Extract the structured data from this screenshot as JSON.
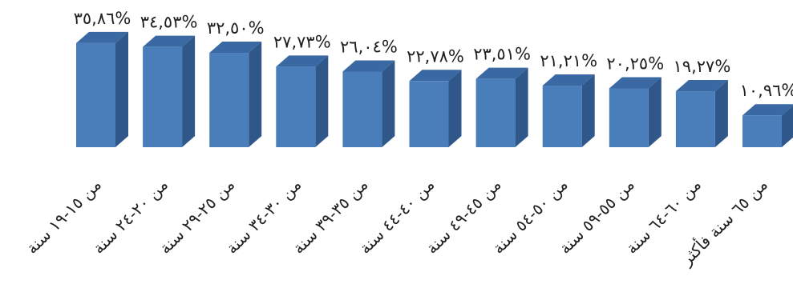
{
  "chart_data": {
    "type": "bar",
    "style": "3d-column",
    "title": "",
    "xlabel": "",
    "ylabel": "",
    "grid": false,
    "legend": "none",
    "ylim": [
      0,
      36
    ],
    "colors": {
      "front": "#4A7EBB",
      "side": "#2F578A",
      "top": "#3A68A2",
      "text": "#1f1f1f",
      "background": "#ffffff"
    },
    "categories": [
      "من ١٥-١٩ سنة",
      "من ٢٠-٢٤ سنة",
      "من ٢٥-٢٩ سنة",
      "من ٣٠-٣٤ سنة",
      "من ٣٥-٣٩ سنة",
      "من ٤٠-٤٤ سنة",
      "من ٤٥-٤٩ سنة",
      "من ٥٠-٥٤ سنة",
      "من ٥٥-٥٩ سنة",
      "من ٦٠-٦٤ سنة",
      "من ٦٥ سنة فأكثر"
    ],
    "values": [
      35.86,
      34.53,
      32.5,
      27.73,
      26.04,
      22.78,
      23.51,
      21.21,
      20.25,
      19.27,
      10.96
    ],
    "value_labels": [
      "٣٥,٨٦%",
      "٣٤,٥٣%",
      "٣٢,٥٠%",
      "٢٧,٧٣%",
      "٢٦,٠٤%",
      "٢٢,٧٨%",
      "٢٣,٥١%",
      "٢١,٢١%",
      "٢٠,٢٥%",
      "١٩,٢٧%",
      "١٠,٩٦%"
    ]
  }
}
